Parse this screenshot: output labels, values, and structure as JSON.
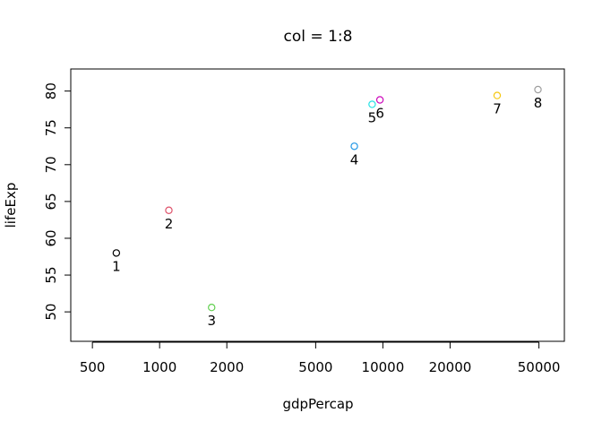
{
  "chart_data": {
    "type": "scatter",
    "title": "col = 1:8",
    "xlabel": "gdpPercap",
    "ylabel": "lifeExp",
    "x_scale": "log",
    "xlim": [
      400,
      65000
    ],
    "ylim": [
      46,
      83
    ],
    "x_ticks": [
      500,
      1000,
      2000,
      5000,
      10000,
      20000,
      50000
    ],
    "x_tick_labels": [
      "500",
      "1000",
      "2000",
      "5000",
      "10000",
      "20000",
      "50000"
    ],
    "y_ticks": [
      50,
      55,
      60,
      65,
      70,
      75,
      80
    ],
    "y_tick_labels": [
      "50",
      "55",
      "60",
      "65",
      "70",
      "75",
      "80"
    ],
    "grid": false,
    "points": [
      {
        "label": "1",
        "x": 640,
        "y": 58.0,
        "color": "#000000"
      },
      {
        "label": "2",
        "x": 1100,
        "y": 63.8,
        "color": "#DF536B"
      },
      {
        "label": "3",
        "x": 1710,
        "y": 50.6,
        "color": "#61D04F"
      },
      {
        "label": "4",
        "x": 7450,
        "y": 72.5,
        "color": "#2297E6"
      },
      {
        "label": "5",
        "x": 8950,
        "y": 78.2,
        "color": "#28E2E5"
      },
      {
        "label": "6",
        "x": 9700,
        "y": 78.8,
        "color": "#CD0BBC"
      },
      {
        "label": "7",
        "x": 32500,
        "y": 79.4,
        "color": "#F5C710"
      },
      {
        "label": "8",
        "x": 49500,
        "y": 80.2,
        "color": "#9E9E9E"
      }
    ]
  }
}
